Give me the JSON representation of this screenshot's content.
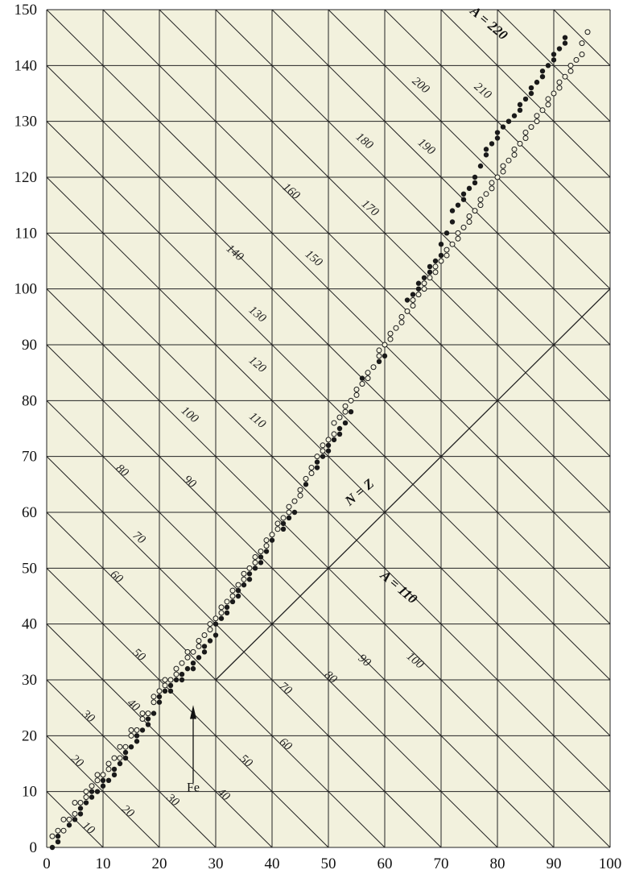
{
  "colors": {
    "paper": "#f2f1dd",
    "ink": "#222222",
    "axis_text": "#111111"
  },
  "chart_data": {
    "type": "scatter",
    "title": "",
    "xlabel": "",
    "ylabel": "",
    "xlim": [
      0,
      100
    ],
    "ylim": [
      0,
      150
    ],
    "grid": true,
    "x_ticks": [
      "0",
      "10",
      "20",
      "30",
      "40",
      "50",
      "60",
      "70",
      "80",
      "90",
      "100"
    ],
    "y_ticks": [
      "0",
      "10",
      "20",
      "30",
      "40",
      "50",
      "60",
      "70",
      "80",
      "90",
      "100",
      "110",
      "120",
      "130",
      "140",
      "150"
    ],
    "isobar_labels": [
      {
        "text": "10",
        "x": 7,
        "y": 3
      },
      {
        "text": "20",
        "x": 14,
        "y": 6
      },
      {
        "text": "30",
        "x": 22,
        "y": 8
      },
      {
        "text": "40",
        "x": 31,
        "y": 9
      },
      {
        "text": "20",
        "x": 5,
        "y": 15
      },
      {
        "text": "30",
        "x": 7,
        "y": 23
      },
      {
        "text": "40",
        "x": 15,
        "y": 25
      },
      {
        "text": "50",
        "x": 35,
        "y": 15
      },
      {
        "text": "60",
        "x": 42,
        "y": 18
      },
      {
        "text": "70",
        "x": 42,
        "y": 28
      },
      {
        "text": "80",
        "x": 50,
        "y": 30
      },
      {
        "text": "50",
        "x": 16,
        "y": 34
      },
      {
        "text": "60",
        "x": 12,
        "y": 48
      },
      {
        "text": "70",
        "x": 16,
        "y": 55
      },
      {
        "text": "80",
        "x": 13,
        "y": 67
      },
      {
        "text": "90",
        "x": 25,
        "y": 65
      },
      {
        "text": "100",
        "x": 25,
        "y": 77
      },
      {
        "text": "110",
        "x": 37,
        "y": 76
      },
      {
        "text": "120",
        "x": 37,
        "y": 86
      },
      {
        "text": "130",
        "x": 37,
        "y": 95
      },
      {
        "text": "140",
        "x": 33,
        "y": 106
      },
      {
        "text": "150",
        "x": 47,
        "y": 105
      },
      {
        "text": "160",
        "x": 43,
        "y": 117
      },
      {
        "text": "170",
        "x": 57,
        "y": 114
      },
      {
        "text": "180",
        "x": 56,
        "y": 126
      },
      {
        "text": "190",
        "x": 67,
        "y": 125
      },
      {
        "text": "200",
        "x": 66,
        "y": 136
      },
      {
        "text": "210",
        "x": 77,
        "y": 135
      },
      {
        "text": "90",
        "x": 56,
        "y": 33
      },
      {
        "text": "100",
        "x": 65,
        "y": 33
      }
    ],
    "annotations": [
      {
        "text": "N = Z",
        "x": 56,
        "y": 63
      },
      {
        "text": "A = 110",
        "x": 62,
        "y": 46
      },
      {
        "text": "A = 220",
        "x": 78,
        "y": 147
      },
      {
        "text": "Fe",
        "x": 26,
        "y": 10
      }
    ],
    "series": [
      {
        "marker": "filled",
        "x": [
          1,
          2,
          2,
          3,
          4,
          5,
          6,
          6,
          7,
          8,
          8,
          9,
          10,
          10,
          11,
          12,
          12,
          13,
          14,
          14,
          15,
          16,
          16,
          17,
          18,
          18,
          19,
          20,
          20,
          21,
          22,
          22,
          23,
          24,
          24,
          25,
          26,
          26,
          27,
          28,
          28,
          29,
          30,
          30,
          31,
          32,
          32,
          33,
          34,
          34,
          35,
          36,
          36,
          37,
          38,
          38,
          39,
          40,
          40,
          41,
          42,
          42,
          43,
          44,
          44,
          45,
          46,
          46,
          47,
          48,
          48,
          49,
          50,
          50,
          51,
          52,
          52,
          53,
          54,
          54,
          55,
          56,
          56,
          57,
          58,
          58,
          59,
          60,
          60,
          61,
          62,
          62,
          63,
          64,
          64,
          65,
          66,
          66,
          67,
          68,
          68,
          69,
          70,
          70,
          71,
          72,
          72,
          73,
          74,
          74,
          75,
          76,
          76,
          77,
          78,
          78,
          79,
          80,
          80,
          81,
          82,
          82,
          83,
          84,
          84,
          85,
          86,
          86,
          87,
          88,
          88,
          89,
          90,
          90,
          91,
          92,
          92
        ],
        "y": [
          0,
          1,
          2,
          3,
          4,
          5,
          6,
          7,
          8,
          9,
          10,
          10,
          12,
          11,
          12,
          13,
          14,
          15,
          16,
          17,
          18,
          19,
          20,
          21,
          22,
          23,
          24,
          26,
          27,
          28,
          28,
          29,
          30,
          30,
          31,
          32,
          32,
          33,
          34,
          35,
          36,
          37,
          38,
          40,
          41,
          42,
          43,
          44,
          45,
          46,
          47,
          48,
          49,
          50,
          51,
          52,
          53,
          55,
          56,
          57,
          57,
          58,
          59,
          60,
          62,
          64,
          65,
          66,
          67,
          68,
          69,
          70,
          71,
          72,
          73,
          74,
          75,
          76,
          78,
          80,
          82,
          83,
          84,
          85,
          86,
          86,
          87,
          88,
          90,
          92,
          93,
          93,
          94,
          96,
          98,
          99,
          100,
          101,
          102,
          103,
          104,
          105,
          106,
          108,
          110,
          112,
          114,
          115,
          116,
          117,
          118,
          119,
          120,
          122,
          124,
          125,
          126,
          127,
          128,
          129,
          130,
          130,
          131,
          132,
          133,
          134,
          135,
          136,
          137,
          138,
          139,
          140,
          141,
          142,
          143,
          144,
          145
        ]
      },
      {
        "marker": "open",
        "x": [
          1,
          2,
          3,
          3,
          4,
          5,
          5,
          6,
          7,
          7,
          8,
          9,
          9,
          10,
          11,
          11,
          12,
          13,
          13,
          14,
          15,
          15,
          16,
          17,
          17,
          18,
          19,
          19,
          20,
          21,
          21,
          22,
          23,
          23,
          24,
          25,
          25,
          26,
          27,
          27,
          28,
          29,
          29,
          30,
          31,
          31,
          32,
          33,
          33,
          34,
          35,
          35,
          36,
          37,
          37,
          38,
          39,
          39,
          40,
          41,
          41,
          42,
          43,
          43,
          44,
          45,
          45,
          46,
          47,
          47,
          48,
          49,
          49,
          50,
          51,
          51,
          52,
          53,
          53,
          54,
          55,
          55,
          56,
          57,
          57,
          58,
          59,
          59,
          60,
          61,
          61,
          62,
          63,
          63,
          64,
          65,
          65,
          66,
          67,
          67,
          68,
          69,
          69,
          70,
          71,
          71,
          72,
          73,
          73,
          74,
          75,
          75,
          76,
          77,
          77,
          78,
          79,
          79,
          80,
          81,
          81,
          82,
          83,
          83,
          84,
          85,
          85,
          86,
          87,
          87,
          88,
          89,
          89,
          90,
          91,
          91,
          92,
          93,
          93,
          94,
          95,
          95,
          96
        ],
        "y": [
          2,
          3,
          3,
          5,
          5,
          6,
          8,
          8,
          9,
          10,
          11,
          12,
          13,
          13,
          14,
          15,
          16,
          16,
          18,
          18,
          20,
          21,
          21,
          23,
          24,
          24,
          26,
          27,
          28,
          29,
          30,
          30,
          31,
          32,
          33,
          34,
          35,
          35,
          36,
          37,
          38,
          39,
          40,
          41,
          42,
          43,
          44,
          45,
          46,
          47,
          48,
          49,
          50,
          51,
          52,
          53,
          54,
          55,
          56,
          57,
          58,
          59,
          60,
          61,
          62,
          63,
          64,
          66,
          67,
          68,
          70,
          71,
          72,
          73,
          74,
          76,
          77,
          78,
          79,
          80,
          81,
          82,
          83,
          84,
          85,
          86,
          88,
          89,
          90,
          91,
          92,
          93,
          94,
          95,
          96,
          97,
          98,
          99,
          100,
          101,
          102,
          103,
          104,
          105,
          106,
          107,
          108,
          109,
          110,
          111,
          112,
          113,
          114,
          115,
          116,
          117,
          118,
          119,
          120,
          121,
          122,
          123,
          124,
          125,
          126,
          127,
          128,
          129,
          130,
          131,
          132,
          133,
          134,
          135,
          136,
          137,
          138,
          139,
          140,
          141,
          142,
          144,
          146
        ]
      }
    ]
  }
}
